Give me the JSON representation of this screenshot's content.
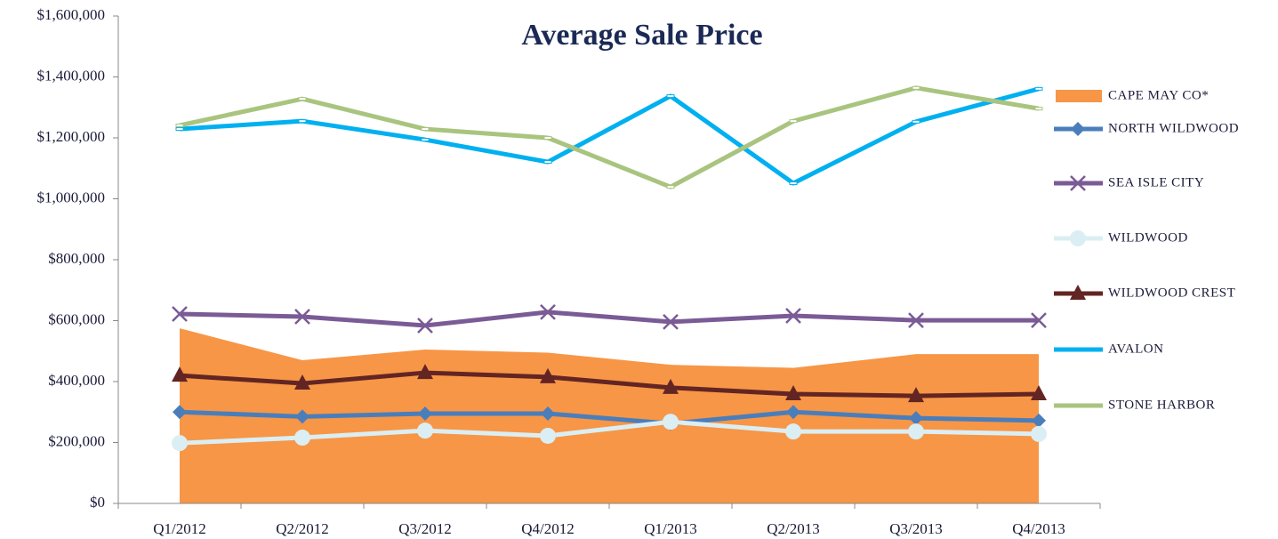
{
  "chart_data": {
    "type": "line",
    "title": "Average Sale Price",
    "categories": [
      "Q1/2012",
      "Q2/2012",
      "Q3/2012",
      "Q4/2012",
      "Q1/2013",
      "Q2/2013",
      "Q3/2013",
      "Q4/2013"
    ],
    "ylim": [
      0,
      1600000
    ],
    "yticks": [
      {
        "value": 0,
        "label": "$0"
      },
      {
        "value": 200000,
        "label": "$200,000"
      },
      {
        "value": 400000,
        "label": "$400,000"
      },
      {
        "value": 600000,
        "label": "$600,000"
      },
      {
        "value": 800000,
        "label": "$800,000"
      },
      {
        "value": 1000000,
        "label": "$1,000,000"
      },
      {
        "value": 1200000,
        "label": "$1,200,000"
      },
      {
        "value": 1400000,
        "label": "$1,400,000"
      },
      {
        "value": 1600000,
        "label": "$1,600,000"
      }
    ],
    "grid": false,
    "legend": "right",
    "series": [
      {
        "name": "CAPE MAY CO*",
        "type": "area",
        "color": "#f79646",
        "values": [
          575000,
          470000,
          505000,
          495000,
          455000,
          445000,
          490000,
          490000
        ]
      },
      {
        "name": "NORTH WILDWOOD",
        "type": "line",
        "marker": "diamond",
        "color": "#4a7ebb",
        "values": [
          300000,
          285000,
          295000,
          295000,
          262000,
          300000,
          280000,
          272000
        ]
      },
      {
        "name": "SEA ISLE CITY",
        "type": "line",
        "marker": "x",
        "color": "#7a5b96",
        "values": [
          622000,
          613000,
          584000,
          628000,
          596000,
          616000,
          601000,
          601000
        ]
      },
      {
        "name": "WILDWOOD",
        "type": "line",
        "marker": "circle",
        "color": "#dbeef3",
        "values": [
          198000,
          216000,
          239000,
          222000,
          268000,
          236000,
          236000,
          228000
        ]
      },
      {
        "name": "WILDWOOD CREST",
        "type": "line",
        "marker": "triangle",
        "color": "#632523",
        "values": [
          420000,
          394000,
          429000,
          415000,
          380000,
          359000,
          353000,
          359000
        ]
      },
      {
        "name": "AVALON",
        "type": "line",
        "marker": "dash",
        "color": "#00b0f0",
        "values": [
          1229000,
          1255000,
          1194000,
          1121000,
          1337000,
          1051000,
          1253000,
          1361000
        ]
      },
      {
        "name": "STONE HARBOR",
        "type": "line",
        "marker": "dash",
        "color": "#a9c47f",
        "values": [
          1241000,
          1328000,
          1229000,
          1200000,
          1039000,
          1255000,
          1364000,
          1296000
        ]
      }
    ]
  }
}
